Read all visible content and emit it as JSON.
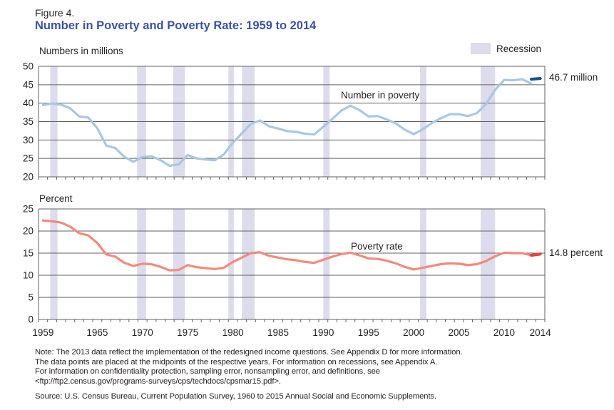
{
  "header": {
    "figure_label": "Figure 4.",
    "title": "Number in Poverty and Poverty Rate: 1959 to 2014"
  },
  "legend": {
    "recession_label": "Recession"
  },
  "colors": {
    "title_blue": "#3a53a0",
    "recession_band": "#dcdcec",
    "grid": "#5f6062",
    "text": "#231f20",
    "number_line": "#a9c7e3",
    "number_final_segment": "#1b5288",
    "rate_line": "#f4897b",
    "rate_final_segment": "#e0453a"
  },
  "x_axis": {
    "range": [
      1959,
      2015
    ],
    "tick_every_years": 1,
    "labels": [
      1959,
      1965,
      1970,
      1975,
      1980,
      1985,
      1990,
      1995,
      2000,
      2005,
      2010,
      2014
    ],
    "note": "data points placed at midpoints of years"
  },
  "recessions": [
    [
      1960.3,
      1961.1
    ],
    [
      1969.9,
      1970.9
    ],
    [
      1973.9,
      1975.2
    ],
    [
      1980.0,
      1980.6
    ],
    [
      1981.5,
      1982.9
    ],
    [
      1990.5,
      1991.2
    ],
    [
      2001.2,
      2001.9
    ],
    [
      2007.9,
      2009.5
    ]
  ],
  "chart_data": [
    {
      "type": "line",
      "name": "number-in-poverty",
      "ylabel": "Numbers in millions",
      "series_label": "Number in poverty",
      "end_label": "46.7 million",
      "ylim": [
        20,
        50
      ],
      "yticks": [
        20,
        25,
        30,
        35,
        40,
        45,
        50
      ],
      "start_year": 1959,
      "values": [
        39.5,
        39.9,
        39.6,
        38.6,
        36.4,
        36.1,
        33.2,
        28.5,
        27.8,
        25.4,
        24.1,
        25.4,
        25.6,
        24.5,
        23.0,
        23.4,
        25.9,
        25.0,
        24.7,
        24.5,
        26.1,
        29.3,
        31.8,
        34.4,
        35.3,
        33.7,
        33.1,
        32.4,
        32.2,
        31.7,
        31.5,
        33.6,
        35.7,
        38.0,
        39.3,
        38.1,
        36.4,
        36.5,
        35.6,
        34.5,
        32.8,
        31.6,
        32.9,
        34.6,
        35.9,
        37.0,
        37.0,
        36.5,
        37.3,
        39.8,
        43.6,
        46.3,
        46.2,
        46.5,
        45.3
      ],
      "line_color": "#a9c7e3",
      "redesigned_segment": {
        "years": [
          2013,
          2014
        ],
        "values": [
          46.5,
          46.7
        ],
        "color": "#1b5288"
      }
    },
    {
      "type": "line",
      "name": "poverty-rate",
      "ylabel": "Percent",
      "series_label": "Poverty rate",
      "end_label": "14.8 percent",
      "ylim": [
        0,
        25
      ],
      "yticks": [
        0,
        5,
        10,
        15,
        20,
        25
      ],
      "start_year": 1959,
      "values": [
        22.4,
        22.2,
        21.9,
        21.0,
        19.5,
        19.0,
        17.3,
        14.7,
        14.2,
        12.8,
        12.1,
        12.6,
        12.5,
        11.9,
        11.1,
        11.2,
        12.3,
        11.8,
        11.6,
        11.4,
        11.7,
        13.0,
        14.0,
        15.0,
        15.2,
        14.4,
        14.0,
        13.6,
        13.4,
        13.0,
        12.8,
        13.5,
        14.2,
        14.8,
        15.1,
        14.5,
        13.8,
        13.7,
        13.3,
        12.7,
        11.9,
        11.3,
        11.7,
        12.1,
        12.5,
        12.7,
        12.6,
        12.3,
        12.5,
        13.2,
        14.3,
        15.1,
        15.0,
        15.0,
        14.5
      ],
      "line_color": "#f4897b",
      "redesigned_segment": {
        "years": [
          2013,
          2014
        ],
        "values": [
          14.5,
          14.8
        ],
        "color": "#e0453a"
      }
    }
  ],
  "notes": {
    "line1": "Note: The 2013 data reflect the implementation of the redesigned income questions. See Appendix D for more information.",
    "line2": "The data points are placed at the midpoints of the respective years. For information on recessions, see Appendix A.",
    "line3": "For information on confidentiality protection, sampling error, nonsampling error, and definitions, see",
    "line4": "<ftp://ftp2.census.gov/programs-surveys/cps/techdocs/cpsmar15.pdf>.",
    "source": "Source: U.S. Census Bureau, Current Population Survey, 1960 to 2015 Annual Social and Economic Supplements."
  }
}
